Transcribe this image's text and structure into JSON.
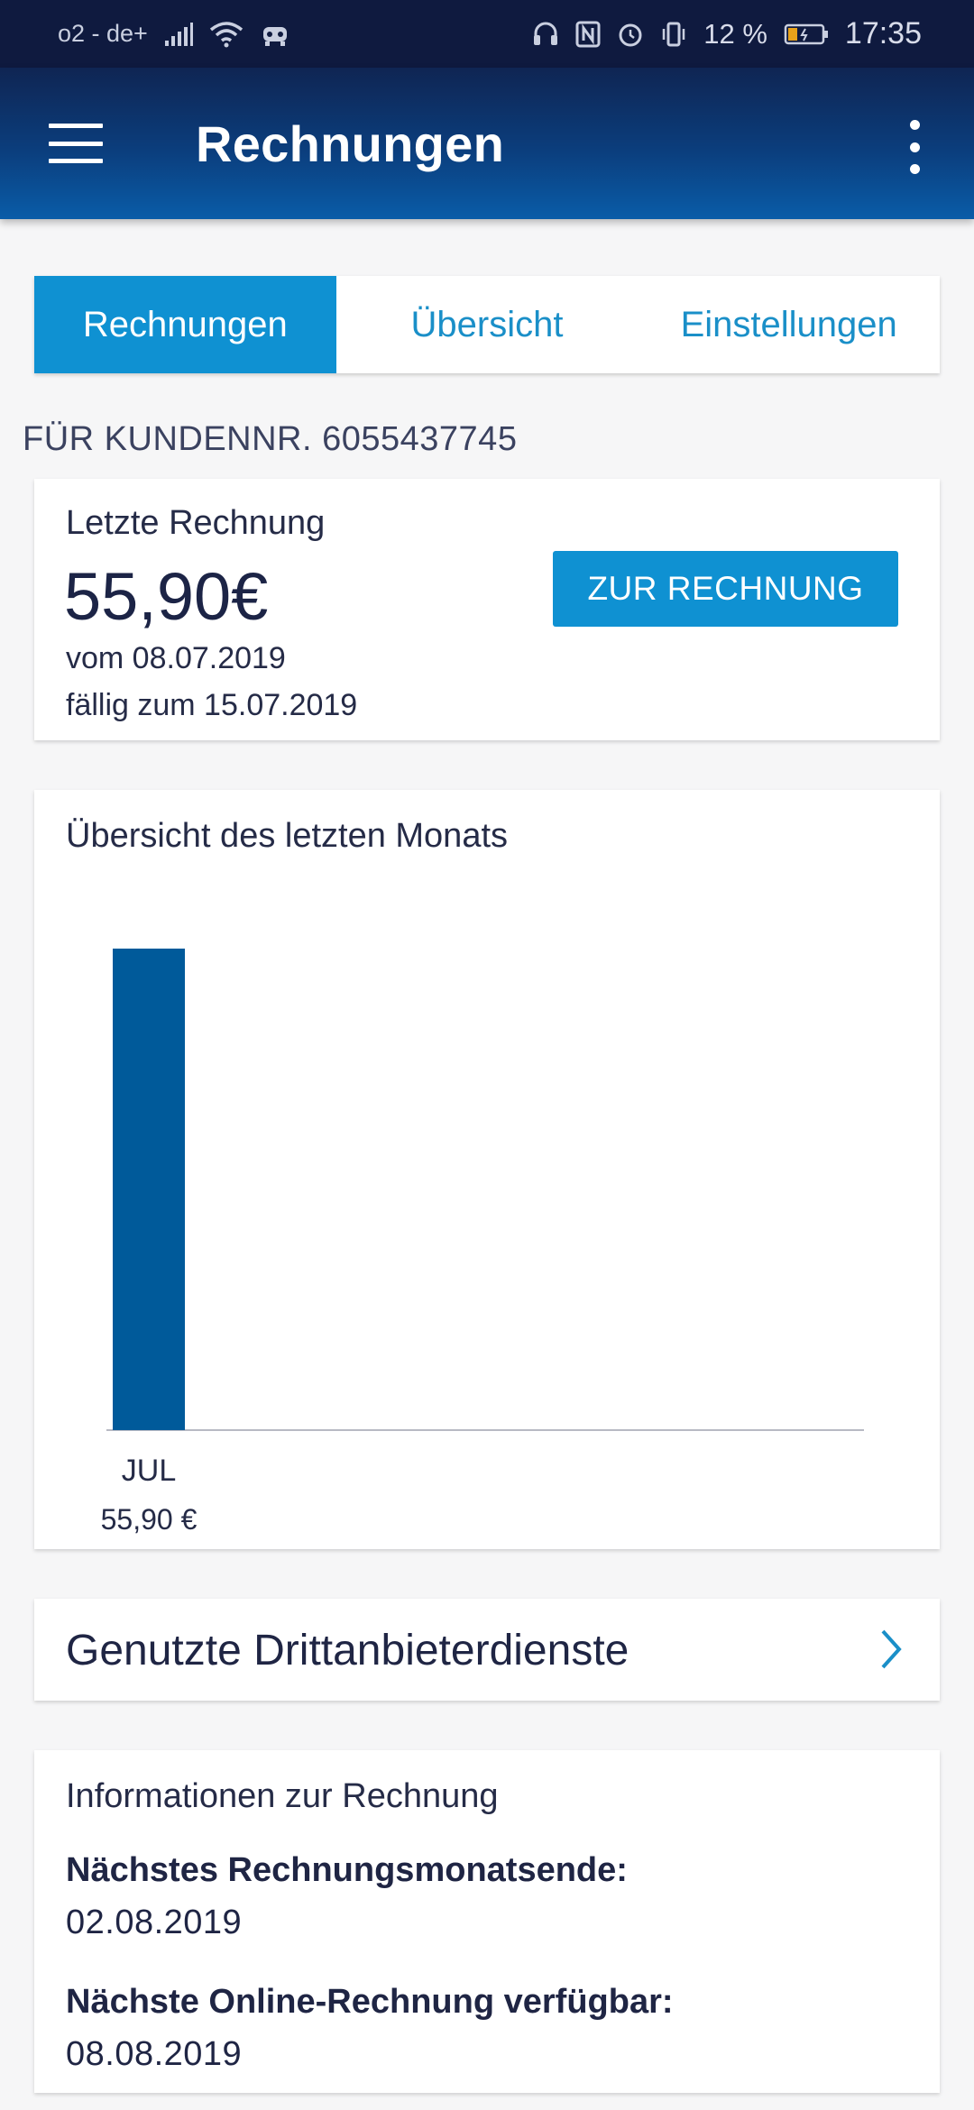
{
  "status_bar": {
    "carrier": "o2 - de+",
    "battery_percent": "12 %",
    "time": "17:35",
    "icons": [
      "signal-icon",
      "wifi-icon",
      "hotspot-icon",
      "headset-icon",
      "nfc-icon",
      "alarm-icon",
      "vibrate-icon",
      "battery-icon"
    ]
  },
  "app_bar": {
    "title": "Rechnungen",
    "menu_icon": "hamburger-menu-icon",
    "more_icon": "more-vertical-icon"
  },
  "tabs": [
    {
      "label": "Rechnungen",
      "active": true
    },
    {
      "label": "Übersicht",
      "active": false
    },
    {
      "label": "Einstellungen",
      "active": false
    }
  ],
  "customer_line": "FÜR KUNDENNR. 6055437745",
  "last_invoice": {
    "title": "Letzte Rechnung",
    "amount": "55,90€",
    "date": "vom 08.07.2019",
    "due": "fällig zum 15.07.2019",
    "button_label": "ZUR RECHNUNG"
  },
  "chart": {
    "title": "Übersicht des letzten Monats"
  },
  "chart_data": {
    "type": "bar",
    "categories": [
      "JUL"
    ],
    "values": [
      55.9
    ],
    "value_labels": [
      "55,90 €"
    ],
    "title": "Übersicht des letzten Monats",
    "bar_color": "#005a9a",
    "grid": false
  },
  "third_party": {
    "label": "Genutzte Drittanbieterdienste",
    "icon": "chevron-right-icon"
  },
  "info": {
    "title": "Informationen zur Rechnung",
    "items": [
      {
        "label": "Nächstes Rechnungsmonatsende:",
        "value": "02.08.2019"
      },
      {
        "label": "Nächste Online-Rechnung verfügbar:",
        "value": "08.08.2019"
      }
    ]
  },
  "colors": {
    "accent": "#0f91d2",
    "header_dark": "#0f1a3f",
    "text_dark": "#1f2544"
  }
}
